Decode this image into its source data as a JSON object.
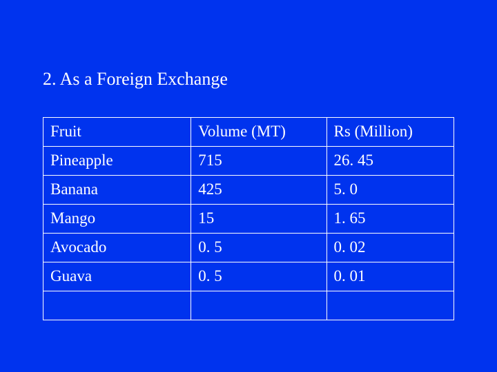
{
  "slide": {
    "title": "2. As a Foreign Exchange",
    "background_color": "#0033ee",
    "text_color": "#ffffff",
    "border_color": "#ffffff",
    "font_family": "Times New Roman",
    "title_fontsize": 26,
    "cell_fontsize": 23
  },
  "table": {
    "type": "table",
    "col_widths_pct": [
      36,
      33,
      31
    ],
    "columns": [
      "Fruit",
      "Volume (MT)",
      "Rs (Million)"
    ],
    "rows": [
      [
        "Pineapple",
        "715",
        "26. 45"
      ],
      [
        "Banana",
        "425",
        "5. 0"
      ],
      [
        "Mango",
        "15",
        "1. 65"
      ],
      [
        "Avocado",
        "0. 5",
        "0. 02"
      ],
      [
        "Guava",
        "0. 5",
        "0. 01"
      ],
      [
        "",
        "",
        ""
      ]
    ]
  }
}
